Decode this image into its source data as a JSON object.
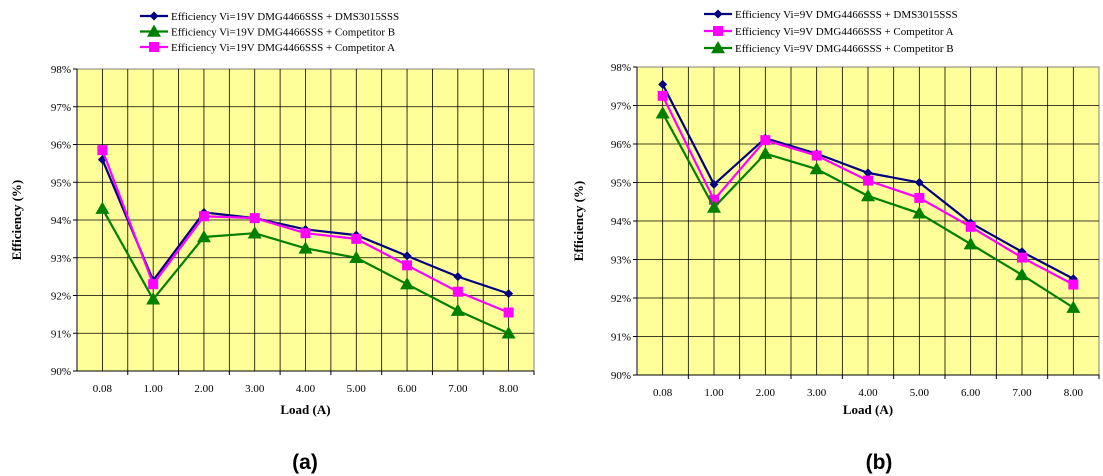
{
  "chart_data": [
    {
      "type": "line",
      "panel_label": "(a)",
      "xlabel": "Load (A)",
      "ylabel": "Efficiency (%)",
      "categories": [
        "0.08",
        "1.00",
        "2.00",
        "3.00",
        "4.00",
        "5.00",
        "6.00",
        "7.00",
        "8.00"
      ],
      "ylim": [
        90,
        98
      ],
      "y_ticks": [
        "90%",
        "91%",
        "92%",
        "93%",
        "94%",
        "95%",
        "96%",
        "97%",
        "98%"
      ],
      "grid": true,
      "legend_position": "top-center",
      "plot_background": "#ffff99",
      "series": [
        {
          "name": "Efficiency Vi=19V DMG4466SSS + DMS3015SSS",
          "color": "#000080",
          "marker": "diamond",
          "values": [
            95.6,
            92.4,
            94.2,
            94.05,
            93.75,
            93.6,
            93.05,
            92.5,
            92.05
          ]
        },
        {
          "name": "Efficiency Vi=19V DMG4466SSS + Competitor B",
          "color": "#008000",
          "marker": "triangle",
          "values": [
            94.3,
            91.9,
            93.55,
            93.65,
            93.25,
            93.0,
            92.3,
            91.6,
            91.0
          ]
        },
        {
          "name": "Efficiency Vi=19V DMG4466SSS + Competitor A",
          "color": "#ff00ff",
          "marker": "square",
          "values": [
            95.85,
            92.3,
            94.1,
            94.05,
            93.65,
            93.5,
            92.8,
            92.1,
            91.55
          ]
        }
      ]
    },
    {
      "type": "line",
      "panel_label": "(b)",
      "xlabel": "Load (A)",
      "ylabel": "Efficiency (%)",
      "categories": [
        "0.08",
        "1.00",
        "2.00",
        "3.00",
        "4.00",
        "5.00",
        "6.00",
        "7.00",
        "8.00"
      ],
      "ylim": [
        90,
        98
      ],
      "y_ticks": [
        "90%",
        "91%",
        "92%",
        "93%",
        "94%",
        "95%",
        "96%",
        "97%",
        "98%"
      ],
      "grid": true,
      "legend_position": "top-center",
      "plot_background": "#ffff99",
      "series": [
        {
          "name": "Efficiency Vi=9V DMG4466SSS + DMS3015SSS",
          "color": "#000080",
          "marker": "diamond",
          "values": [
            97.55,
            94.95,
            96.15,
            95.75,
            95.25,
            95.0,
            93.95,
            93.2,
            92.5
          ]
        },
        {
          "name": "Efficiency Vi=9V DMG4466SSS + Competitor A",
          "color": "#ff00ff",
          "marker": "square",
          "values": [
            97.25,
            94.55,
            96.1,
            95.7,
            95.05,
            94.6,
            93.85,
            93.05,
            92.35
          ]
        },
        {
          "name": "Efficiency Vi=9V DMG4466SSS + Competitor B",
          "color": "#008000",
          "marker": "triangle",
          "values": [
            96.8,
            94.35,
            95.75,
            95.35,
            94.65,
            94.2,
            93.4,
            92.6,
            91.75
          ]
        }
      ]
    }
  ]
}
